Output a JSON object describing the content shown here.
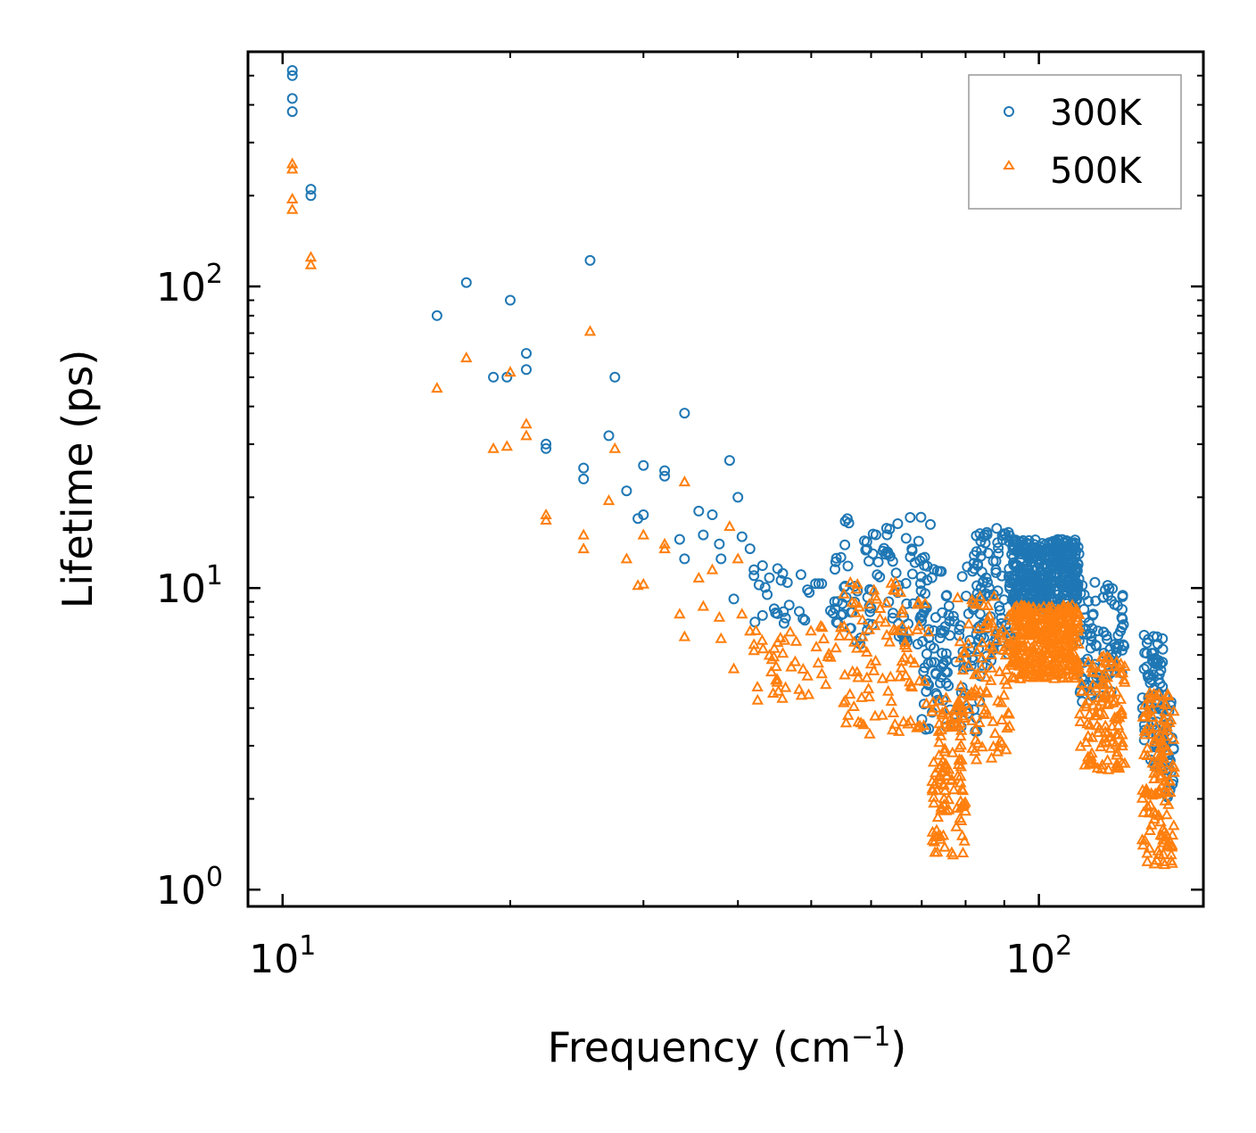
{
  "chart_data": {
    "type": "scatter",
    "xscale": "log",
    "yscale": "log",
    "xlabel": "Frequency (cm",
    "xlabel_sup": "−1",
    "xlabel_close": ")",
    "ylabel": "Lifetime (ps)",
    "xlim": [
      9.0,
      165
    ],
    "ylim": [
      0.88,
      600
    ],
    "xticks": [
      {
        "value": 10,
        "base": "10",
        "exp": "1"
      },
      {
        "value": 100,
        "base": "10",
        "exp": "2"
      }
    ],
    "yticks": [
      {
        "value": 1,
        "base": "10",
        "exp": "0"
      },
      {
        "value": 10,
        "base": "10",
        "exp": "1"
      },
      {
        "value": 100,
        "base": "10",
        "exp": "2"
      }
    ],
    "legend_position": "top-right",
    "series": [
      {
        "name": "300K",
        "marker": "circle",
        "color": "#1f77b4",
        "anchors": [
          [
            10.3,
            520
          ],
          [
            10.3,
            500
          ],
          [
            10.3,
            420
          ],
          [
            10.3,
            380
          ],
          [
            10.9,
            210
          ],
          [
            10.9,
            200
          ],
          [
            16,
            80
          ],
          [
            17.5,
            103
          ],
          [
            19,
            50
          ],
          [
            19.8,
            50
          ],
          [
            20,
            90
          ],
          [
            21,
            60
          ],
          [
            21,
            53
          ],
          [
            22.3,
            30
          ],
          [
            22.3,
            29
          ],
          [
            25,
            25
          ],
          [
            25,
            23
          ],
          [
            25.5,
            122
          ],
          [
            27,
            32
          ],
          [
            27.5,
            50
          ],
          [
            28.5,
            21
          ],
          [
            29.5,
            17
          ],
          [
            30,
            25.5
          ],
          [
            30,
            17.5
          ],
          [
            32,
            24.5
          ],
          [
            32,
            23.5
          ],
          [
            33.5,
            14.5
          ],
          [
            34,
            38
          ],
          [
            34,
            12.5
          ],
          [
            35.5,
            18
          ],
          [
            36,
            15
          ],
          [
            37,
            17.5
          ],
          [
            37.8,
            14
          ],
          [
            38,
            12.5
          ],
          [
            39,
            26.5
          ],
          [
            39.5,
            9.2
          ],
          [
            40,
            20
          ],
          [
            40.5,
            14.8
          ],
          [
            41.5,
            13.5
          ],
          [
            42,
            11.5
          ],
          [
            42,
            11
          ]
        ],
        "bands": [
          {
            "x": [
              42,
              55
            ],
            "ylow": 7.5,
            "yhigh": 13,
            "n": 40
          },
          {
            "x": [
              55,
              72
            ],
            "ylow": 6.5,
            "yhigh": 17.5,
            "n": 95
          },
          {
            "x": [
              70,
              84
            ],
            "ylow": 3.2,
            "yhigh": 12,
            "n": 120
          },
          {
            "x": [
              82,
              92
            ],
            "ylow": 5.5,
            "yhigh": 16.5,
            "n": 80
          },
          {
            "x": [
              92,
              113
            ],
            "ylow": 8.5,
            "yhigh": 14.5,
            "n": 420
          },
          {
            "x": [
              113,
              130
            ],
            "ylow": 4.2,
            "yhigh": 10.5,
            "n": 90
          },
          {
            "x": [
              137,
              146
            ],
            "ylow": 2.5,
            "yhigh": 7,
            "n": 70
          },
          {
            "x": [
              146,
              151
            ],
            "ylow": 2.0,
            "yhigh": 4.5,
            "n": 30
          }
        ]
      },
      {
        "name": "500K",
        "marker": "triangle",
        "color": "#ff7f0e",
        "anchors": [
          [
            10.3,
            255
          ],
          [
            10.3,
            245
          ],
          [
            10.3,
            195
          ],
          [
            10.3,
            180
          ],
          [
            10.9,
            125
          ],
          [
            10.9,
            118
          ],
          [
            16,
            46
          ],
          [
            17.5,
            58
          ],
          [
            19,
            29
          ],
          [
            19.8,
            29.5
          ],
          [
            20,
            52
          ],
          [
            21,
            35
          ],
          [
            21,
            32
          ],
          [
            22.3,
            17.5
          ],
          [
            22.3,
            16.8
          ],
          [
            25,
            15
          ],
          [
            25,
            13.5
          ],
          [
            25.5,
            71
          ],
          [
            27,
            19.5
          ],
          [
            27.5,
            29
          ],
          [
            28.5,
            12.5
          ],
          [
            29.5,
            10.2
          ],
          [
            30,
            15
          ],
          [
            30,
            10.3
          ],
          [
            32,
            14
          ],
          [
            32,
            13.5
          ],
          [
            33.5,
            8.2
          ],
          [
            34,
            22.5
          ],
          [
            34,
            6.9
          ],
          [
            35.5,
            10.8
          ],
          [
            36,
            8.7
          ],
          [
            37,
            11.5
          ],
          [
            37.8,
            8
          ],
          [
            38,
            6.8
          ],
          [
            39,
            16
          ],
          [
            39.5,
            5.4
          ],
          [
            40,
            12.5
          ],
          [
            40.5,
            8.2
          ],
          [
            41.5,
            7.2
          ],
          [
            42,
            6.5
          ],
          [
            42,
            6.2
          ]
        ],
        "bands": [
          {
            "x": [
              42,
              55
            ],
            "ylow": 4.2,
            "yhigh": 7.5,
            "n": 45
          },
          {
            "x": [
              55,
              72
            ],
            "ylow": 3.2,
            "yhigh": 10.5,
            "n": 100
          },
          {
            "x": [
              72,
              80
            ],
            "ylow": 1.3,
            "yhigh": 4.5,
            "n": 110
          },
          {
            "x": [
              78,
              92
            ],
            "ylow": 2.6,
            "yhigh": 9.5,
            "n": 100
          },
          {
            "x": [
              92,
              113
            ],
            "ylow": 5,
            "yhigh": 8.8,
            "n": 380
          },
          {
            "x": [
              113,
              130
            ],
            "ylow": 2.5,
            "yhigh": 6,
            "n": 120
          },
          {
            "x": [
              137,
              151
            ],
            "ylow": 1.2,
            "yhigh": 4.5,
            "n": 140
          }
        ]
      }
    ]
  }
}
